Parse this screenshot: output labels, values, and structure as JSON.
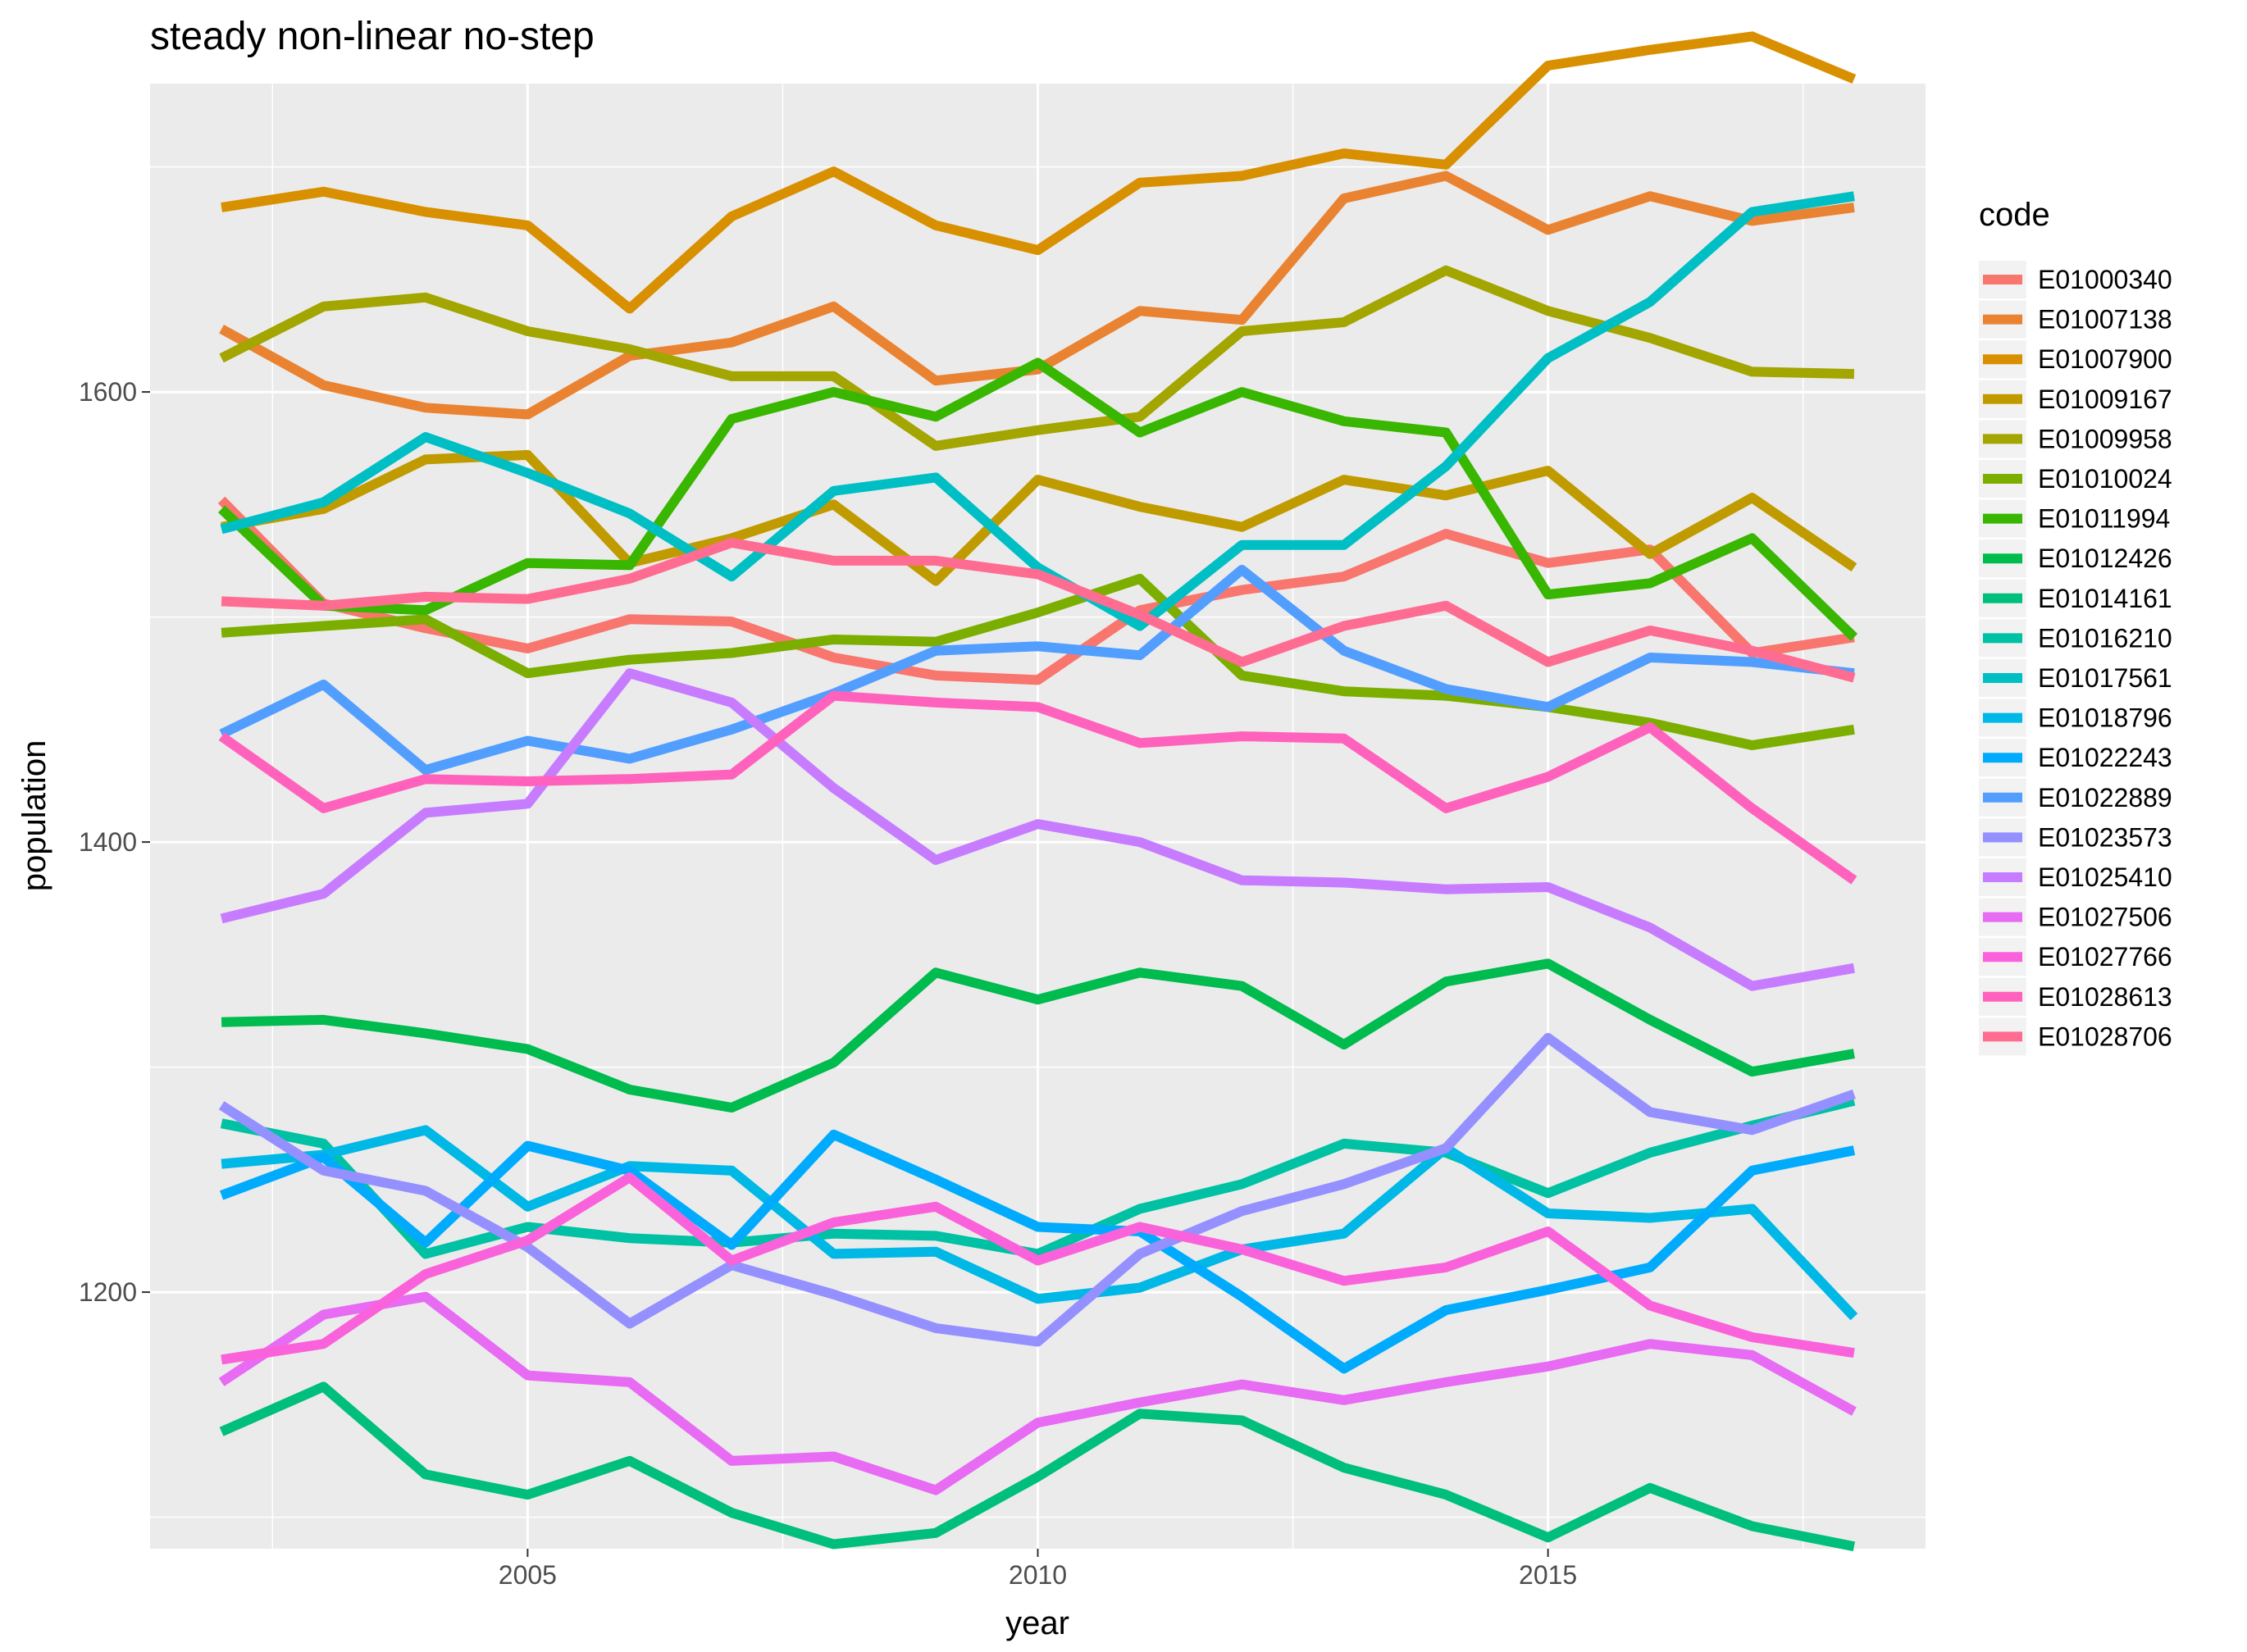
{
  "chart_data": {
    "type": "line",
    "title": "steady non-linear no-step",
    "xlabel": "year",
    "ylabel": "population",
    "xlim": [
      2001.3,
      2018.7
    ],
    "ylim": [
      1086,
      1737
    ],
    "x_ticks": [
      2005,
      2010,
      2015
    ],
    "x_minor_ticks": [
      2002.5,
      2007.5,
      2012.5,
      2017.5
    ],
    "y_ticks": [
      1200,
      1400,
      1600
    ],
    "y_minor_ticks": [
      1100,
      1300,
      1500,
      1700
    ],
    "grid": true,
    "legend_title": "code",
    "legend_position": "right",
    "x": [
      2002,
      2003,
      2004,
      2005,
      2006,
      2007,
      2008,
      2009,
      2010,
      2011,
      2012,
      2013,
      2014,
      2015,
      2016,
      2017,
      2018
    ],
    "series": [
      {
        "name": "E01000340",
        "color": "#F8766D",
        "values": [
          1552,
          1506,
          1495,
          1486,
          1499,
          1498,
          1482,
          1474,
          1472,
          1503,
          1512,
          1518,
          1537,
          1524,
          1530,
          1484,
          1491
        ]
      },
      {
        "name": "E01007138",
        "color": "#EA8331",
        "values": [
          1628,
          1603,
          1593,
          1590,
          1616,
          1622,
          1638,
          1605,
          1610,
          1636,
          1632,
          1686,
          1696,
          1672,
          1687,
          1676,
          1682
        ]
      },
      {
        "name": "E01007900",
        "color": "#D89000",
        "values": [
          1682,
          1689,
          1680,
          1674,
          1637,
          1678,
          1698,
          1674,
          1663,
          1693,
          1696,
          1706,
          1701,
          1745,
          1752,
          1758,
          1739
        ]
      },
      {
        "name": "E01009167",
        "color": "#C09B00",
        "values": [
          1540,
          1548,
          1570,
          1572,
          1524,
          1535,
          1550,
          1516,
          1561,
          1549,
          1540,
          1561,
          1554,
          1565,
          1528,
          1553,
          1522
        ]
      },
      {
        "name": "E01009958",
        "color": "#A3A500",
        "values": [
          1615,
          1638,
          1642,
          1627,
          1619,
          1607,
          1607,
          1576,
          1583,
          1589,
          1627,
          1631,
          1654,
          1636,
          1624,
          1609,
          1608
        ]
      },
      {
        "name": "E01010024",
        "color": "#7CAE00",
        "values": [
          1493,
          1496,
          1499,
          1475,
          1481,
          1484,
          1490,
          1489,
          1502,
          1517,
          1474,
          1467,
          1465,
          1460,
          1453,
          1443,
          1450
        ]
      },
      {
        "name": "E01011994",
        "color": "#39B600",
        "values": [
          1548,
          1505,
          1503,
          1524,
          1523,
          1588,
          1600,
          1589,
          1613,
          1582,
          1600,
          1587,
          1582,
          1510,
          1515,
          1535,
          1491
        ]
      },
      {
        "name": "E01012426",
        "color": "#00BB4E",
        "values": [
          1320,
          1321,
          1315,
          1308,
          1290,
          1282,
          1302,
          1342,
          1330,
          1342,
          1336,
          1310,
          1338,
          1346,
          1321,
          1298,
          1306
        ]
      },
      {
        "name": "E01014161",
        "color": "#00BF7D",
        "values": [
          1138,
          1158,
          1119,
          1110,
          1125,
          1102,
          1088,
          1093,
          1118,
          1146,
          1143,
          1122,
          1110,
          1091,
          1113,
          1096,
          1087
        ]
      },
      {
        "name": "E01016210",
        "color": "#00C1A3",
        "values": [
          1275,
          1266,
          1217,
          1229,
          1224,
          1222,
          1226,
          1225,
          1217,
          1237,
          1248,
          1266,
          1262,
          1244,
          1262,
          1274,
          1285
        ]
      },
      {
        "name": "E01017561",
        "color": "#00BFC4",
        "values": [
          1539,
          1551,
          1580,
          1564,
          1546,
          1518,
          1556,
          1562,
          1522,
          1496,
          1532,
          1532,
          1567,
          1615,
          1640,
          1680,
          1687
        ]
      },
      {
        "name": "E01018796",
        "color": "#00B8E5",
        "values": [
          1257,
          1261,
          1272,
          1238,
          1256,
          1254,
          1217,
          1218,
          1197,
          1202,
          1219,
          1226,
          1264,
          1235,
          1233,
          1237,
          1189
        ]
      },
      {
        "name": "E01022243",
        "color": "#00ABFD",
        "values": [
          1243,
          1260,
          1222,
          1265,
          1254,
          1221,
          1270,
          1250,
          1229,
          1227,
          1198,
          1166,
          1192,
          1201,
          1211,
          1254,
          1263
        ]
      },
      {
        "name": "E01022889",
        "color": "#529EFF",
        "values": [
          1448,
          1470,
          1432,
          1445,
          1437,
          1450,
          1466,
          1485,
          1487,
          1483,
          1521,
          1485,
          1468,
          1460,
          1482,
          1480,
          1475
        ]
      },
      {
        "name": "E01023573",
        "color": "#9590FF",
        "values": [
          1283,
          1254,
          1245,
          1220,
          1186,
          1212,
          1199,
          1184,
          1178,
          1217,
          1236,
          1248,
          1264,
          1313,
          1280,
          1272,
          1288
        ]
      },
      {
        "name": "E01025410",
        "color": "#C77CFF",
        "values": [
          1366,
          1377,
          1413,
          1417,
          1475,
          1462,
          1424,
          1392,
          1408,
          1400,
          1383,
          1382,
          1379,
          1380,
          1362,
          1336,
          1344
        ]
      },
      {
        "name": "E01027506",
        "color": "#E76BF3",
        "values": [
          1160,
          1190,
          1198,
          1163,
          1160,
          1125,
          1127,
          1112,
          1142,
          1151,
          1159,
          1152,
          1160,
          1167,
          1177,
          1172,
          1147
        ]
      },
      {
        "name": "E01027766",
        "color": "#FA62DB",
        "values": [
          1170,
          1177,
          1208,
          1223,
          1251,
          1214,
          1231,
          1238,
          1214,
          1229,
          1219,
          1205,
          1211,
          1227,
          1194,
          1180,
          1173
        ]
      },
      {
        "name": "E01028613",
        "color": "#FF62BC",
        "values": [
          1447,
          1415,
          1428,
          1427,
          1428,
          1430,
          1465,
          1462,
          1460,
          1444,
          1447,
          1446,
          1415,
          1429,
          1451,
          1415,
          1383
        ]
      },
      {
        "name": "E01028706",
        "color": "#FF6C91",
        "values": [
          1507,
          1505,
          1509,
          1508,
          1517,
          1533,
          1525,
          1525,
          1519,
          1501,
          1480,
          1496,
          1505,
          1480,
          1494,
          1485,
          1473
        ]
      }
    ]
  }
}
